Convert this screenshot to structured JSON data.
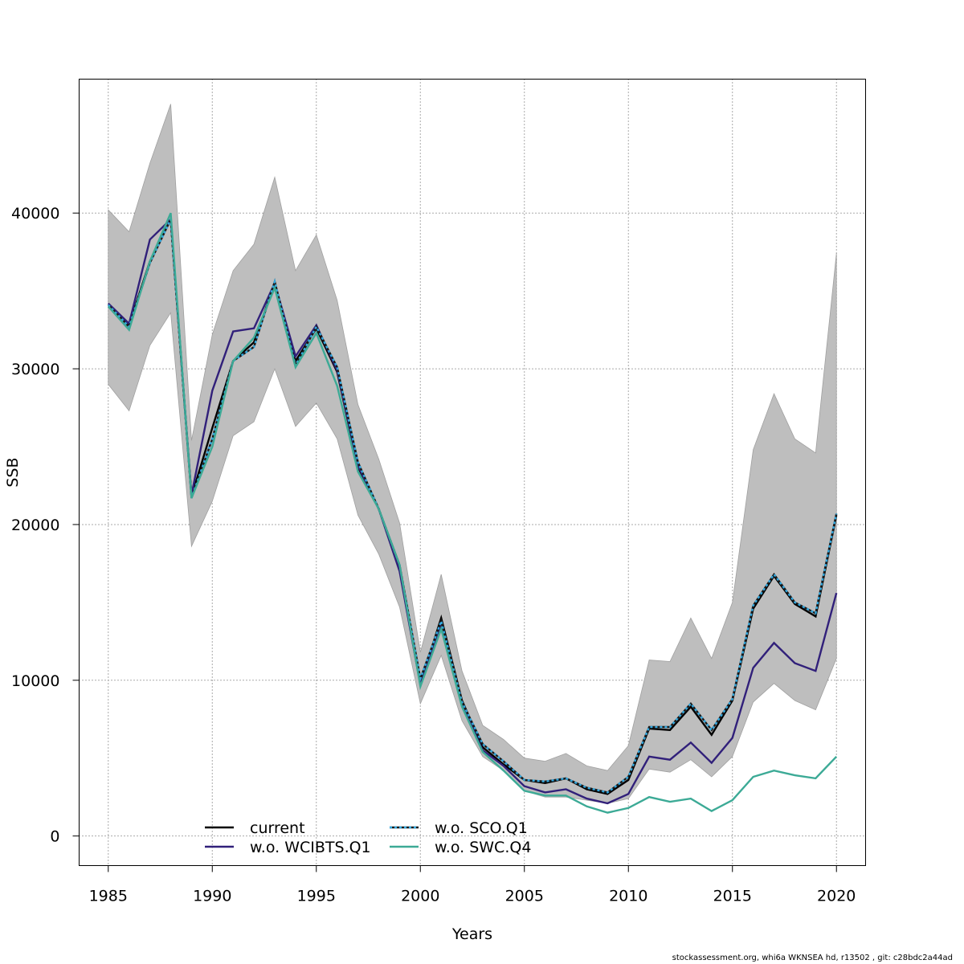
{
  "chart_data": {
    "type": "line",
    "xlabel": "Years",
    "ylabel": "SSB",
    "xlim": [
      1983.6,
      2021.4
    ],
    "ylim": [
      -1900,
      48600
    ],
    "xticks": [
      1985,
      1990,
      1995,
      2000,
      2005,
      2010,
      2015,
      2020
    ],
    "yticks": [
      0,
      10000,
      20000,
      30000,
      40000
    ],
    "grid": true,
    "legend_position": "bottom-center",
    "x": [
      1985,
      1986,
      1987,
      1988,
      1989,
      1990,
      1991,
      1992,
      1993,
      1994,
      1995,
      1996,
      1997,
      1998,
      1999,
      2000,
      2001,
      2002,
      2003,
      2004,
      2005,
      2006,
      2007,
      2008,
      2009,
      2010,
      2011,
      2012,
      2013,
      2014,
      2015,
      2016,
      2017,
      2018,
      2019,
      2020
    ],
    "confidence_band": {
      "color": "#bebebe",
      "lower": [
        29000,
        27300,
        31500,
        33600,
        18600,
        21500,
        25700,
        26600,
        30000,
        26300,
        27800,
        25500,
        20600,
        18100,
        14700,
        8500,
        11600,
        7400,
        5100,
        4200,
        2900,
        2500,
        2500,
        2300,
        2100,
        2400,
        4300,
        4100,
        4900,
        3800,
        5100,
        8600,
        9800,
        8700,
        8100,
        11400
      ],
      "upper": [
        40200,
        38800,
        43200,
        47000,
        25400,
        32200,
        36300,
        38000,
        42300,
        36300,
        38600,
        34400,
        27700,
        24200,
        20100,
        11800,
        16800,
        10600,
        7100,
        6200,
        5000,
        4800,
        5300,
        4500,
        4200,
        5800,
        11300,
        11200,
        14000,
        11400,
        15000,
        24800,
        28400,
        25500,
        24600,
        37400
      ]
    },
    "series": [
      {
        "name": "current",
        "color": "#000000",
        "dash": false,
        "values": [
          34100,
          32800,
          36900,
          39600,
          21800,
          26200,
          30500,
          31700,
          35500,
          30500,
          32600,
          29800,
          23700,
          21000,
          17300,
          9800,
          14000,
          8700,
          5700,
          4600,
          3600,
          3400,
          3700,
          3000,
          2700,
          3600,
          6900,
          6800,
          8300,
          6500,
          8700,
          14600,
          16700,
          14900,
          14100,
          20600
        ]
      },
      {
        "name": "w.o. WCIBTS.Q1",
        "color": "#31207a",
        "dash": false,
        "values": [
          34200,
          32900,
          38300,
          39600,
          21900,
          28600,
          32400,
          32600,
          35500,
          30800,
          32800,
          29900,
          23800,
          21000,
          17000,
          9700,
          13500,
          8400,
          5500,
          4500,
          3200,
          2800,
          3000,
          2400,
          2100,
          2700,
          5100,
          4900,
          6000,
          4700,
          6300,
          10800,
          12400,
          11100,
          10600,
          15600
        ]
      },
      {
        "name": "w.o. SCO.Q1",
        "color": "#33a9e0",
        "dash": true,
        "values": [
          34100,
          32700,
          36800,
          39600,
          21700,
          25500,
          30500,
          31400,
          35600,
          30200,
          32700,
          30100,
          24000,
          21000,
          17400,
          10100,
          13800,
          8600,
          5900,
          4800,
          3600,
          3500,
          3700,
          3100,
          2800,
          3800,
          7000,
          7000,
          8500,
          6800,
          8800,
          14800,
          16800,
          15000,
          14300,
          20700
        ]
      },
      {
        "name": "w.o. SWC.Q4",
        "color": "#3caa96",
        "dash": false,
        "values": [
          34000,
          32500,
          36900,
          40000,
          21700,
          25000,
          30500,
          32000,
          35200,
          30100,
          32300,
          28900,
          23400,
          21000,
          17400,
          9600,
          13300,
          8300,
          5400,
          4200,
          2900,
          2600,
          2600,
          1900,
          1500,
          1800,
          2500,
          2200,
          2400,
          1600,
          2300,
          3800,
          4200,
          3900,
          3700,
          5100
        ]
      }
    ]
  },
  "footer_text": "stockassessment.org, whi6a  WKNSEA  hd, r13502 , git: c28bdc2a44ad"
}
